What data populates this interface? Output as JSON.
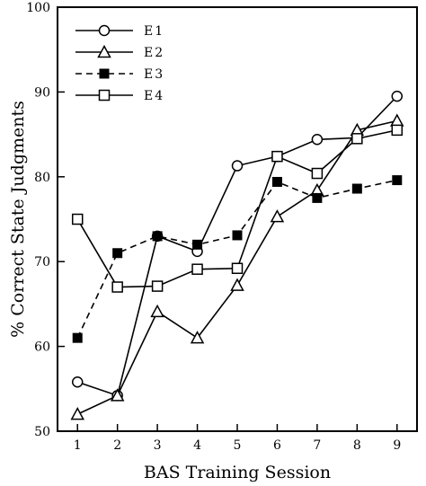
{
  "chart_data": {
    "type": "line",
    "xlabel": "BAS Training Session",
    "ylabel": "% Correct State Judgments",
    "x": [
      1,
      2,
      3,
      4,
      5,
      6,
      7,
      8,
      9
    ],
    "xlim": [
      0.5,
      9.5
    ],
    "ylim": [
      50,
      100
    ],
    "y_ticks": [
      50,
      60,
      70,
      80,
      90,
      100
    ],
    "x_ticks": [
      1,
      2,
      3,
      4,
      5,
      6,
      7,
      8,
      9
    ],
    "grid": false,
    "legend_position": "top-left",
    "series": [
      {
        "name": "E1",
        "marker": "circle-open",
        "line": "solid",
        "values": [
          55.8,
          54.2,
          73.0,
          71.2,
          81.3,
          82.4,
          84.4,
          84.6,
          89.5
        ]
      },
      {
        "name": "E2",
        "marker": "triangle-open",
        "line": "solid",
        "values": [
          52.0,
          54.2,
          64.1,
          61.0,
          67.2,
          75.3,
          78.4,
          85.5,
          86.6
        ]
      },
      {
        "name": "E3",
        "marker": "square-filled",
        "line": "dashed",
        "values": [
          61.0,
          71.0,
          73.0,
          72.0,
          73.1,
          79.4,
          77.5,
          78.6,
          79.6
        ]
      },
      {
        "name": "E4",
        "marker": "square-open",
        "line": "solid",
        "values": [
          75.0,
          67.0,
          67.1,
          69.1,
          69.2,
          82.4,
          80.4,
          84.5,
          85.5
        ]
      }
    ]
  }
}
